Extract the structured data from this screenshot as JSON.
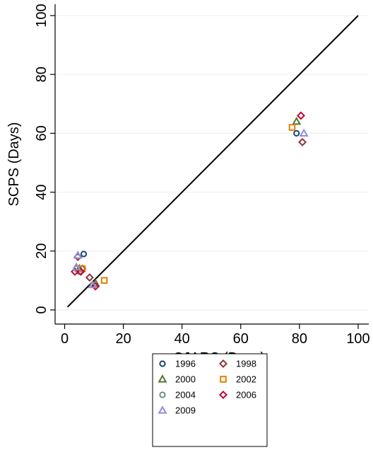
{
  "chart_data": {
    "type": "scatter",
    "xlabel": "CJARS (Days)",
    "ylabel": "SCPS (Days)",
    "xlim": [
      0,
      100
    ],
    "ylim": [
      0,
      100
    ],
    "xticks": [
      "0",
      "20",
      "40",
      "60",
      "80",
      "100"
    ],
    "yticks": [
      "0",
      "20",
      "40",
      "60",
      "80",
      "100"
    ],
    "grid": "horizontal",
    "reference_line": "45-degree line",
    "legend_position": "bottom",
    "series": [
      {
        "name": "1996",
        "marker": "circle",
        "color": "#1a476f",
        "points": [
          [
            6.5,
            19
          ],
          [
            79,
            60
          ]
        ]
      },
      {
        "name": "1998",
        "marker": "diamond",
        "color": "#90353b",
        "points": [
          [
            4.5,
            18
          ],
          [
            8.5,
            11
          ],
          [
            6,
            14
          ],
          [
            81,
            57
          ]
        ]
      },
      {
        "name": "2000",
        "marker": "triangle",
        "color": "#55752f",
        "points": [
          [
            5,
            14
          ],
          [
            10.5,
            9
          ],
          [
            79,
            64
          ]
        ]
      },
      {
        "name": "2002",
        "marker": "square",
        "color": "#e37e00",
        "points": [
          [
            13.5,
            10
          ],
          [
            6,
            14
          ],
          [
            77.5,
            62
          ]
        ]
      },
      {
        "name": "2004",
        "marker": "circle",
        "color": "#6e8e84",
        "points": [
          [
            4,
            14
          ],
          [
            5,
            13
          ]
        ]
      },
      {
        "name": "2006",
        "marker": "diamond",
        "color": "#c10534",
        "points": [
          [
            3.5,
            13
          ],
          [
            10.5,
            8
          ],
          [
            5.5,
            13
          ],
          [
            80.5,
            66
          ]
        ]
      },
      {
        "name": "2009",
        "marker": "triangle",
        "color": "#938dd2",
        "points": [
          [
            4.5,
            18.5
          ],
          [
            9.5,
            8.5
          ],
          [
            4,
            14.5
          ],
          [
            81.5,
            60
          ]
        ]
      }
    ]
  }
}
